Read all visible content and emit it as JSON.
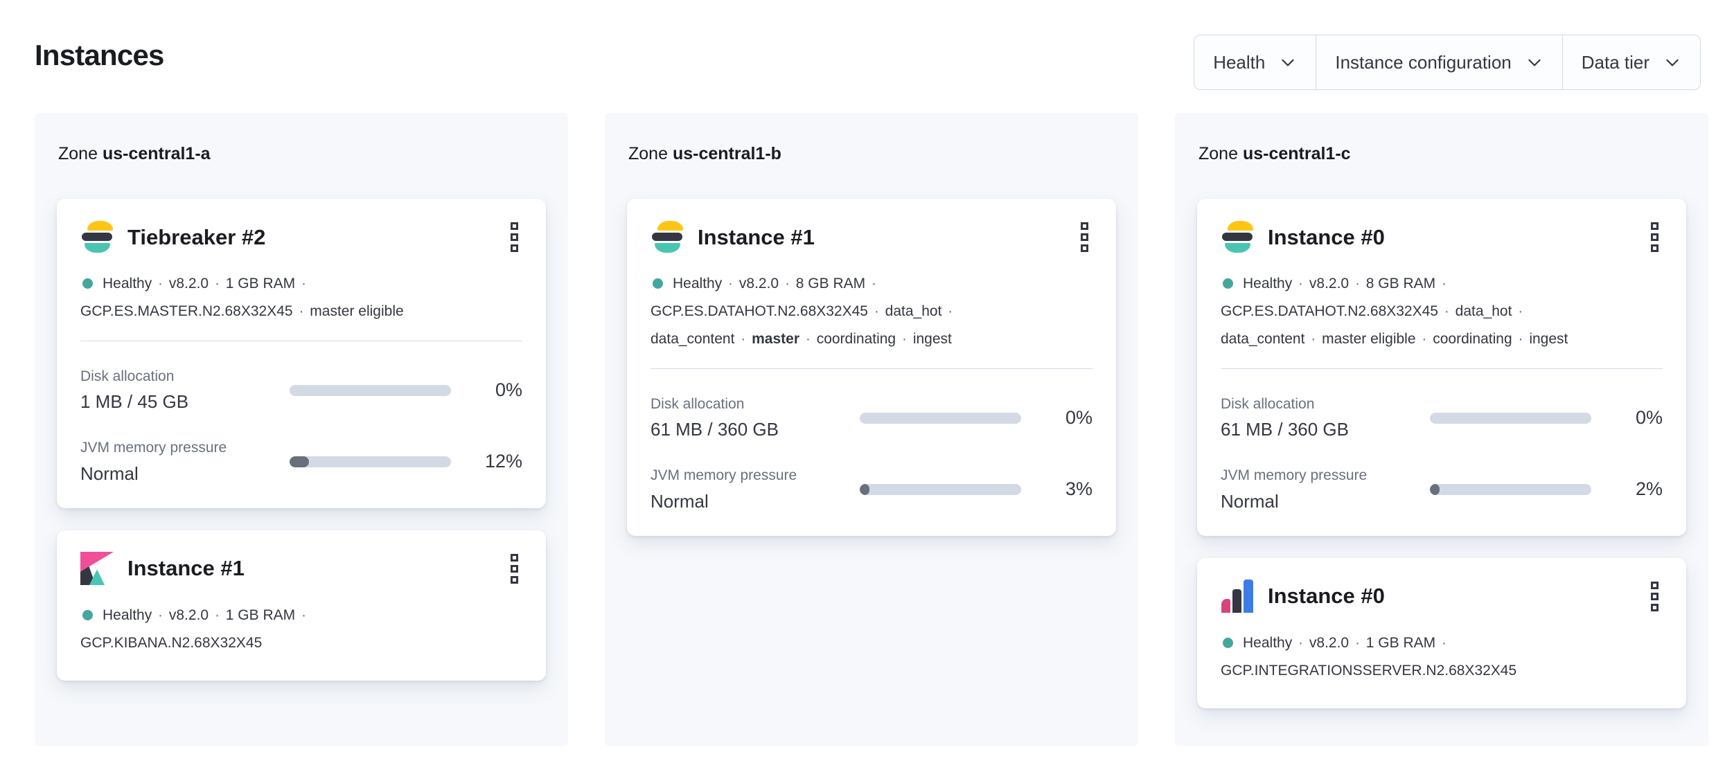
{
  "ui": {
    "separator": "·",
    "menu_icon": "boxes-vertical",
    "chevron_icon": "chevron-down",
    "health_icon": "health-dot"
  },
  "colors": {
    "healthy": "#45a79b",
    "text_dark": "#343741",
    "text_subdued": "#69707d",
    "heading": "#1a1c21",
    "panel_bg": "#f6f8fb",
    "border": "#d3dae6",
    "track": "#d3dae6",
    "fill": "#69707d",
    "filter_bg": "#fcfdfe",
    "es_yellow": "#fec514",
    "es_dark": "#343741",
    "es_teal": "#49c5b1",
    "kibana_pink": "#f04e98",
    "int_pink": "#d6437e",
    "int_blue": "#3a7de9"
  },
  "page": {
    "title": "Instances"
  },
  "filters": [
    {
      "label": "Health"
    },
    {
      "label": "Instance configuration"
    },
    {
      "label": "Data tier"
    }
  ],
  "zones": [
    {
      "prefix": "Zone",
      "name": "us-central1-a",
      "cards": [
        {
          "logo_icon": "elasticsearch-logo",
          "title": "Tiebreaker #2",
          "health": "Healthy",
          "meta_lines": [
            {
              "items": [
                "Healthy",
                "v8.2.0",
                "1 GB RAM"
              ],
              "trailing_separator": true
            },
            {
              "items": [
                "GCP.ES.MASTER.N2.68X32X45",
                "master eligible"
              ],
              "trailing_separator": false
            }
          ],
          "metrics": [
            {
              "label": "Disk allocation",
              "value": "1 MB / 45 GB",
              "percent": "0%",
              "fill": 0
            },
            {
              "label": "JVM memory pressure",
              "value": "Normal",
              "percent": "12%",
              "fill": 12
            }
          ]
        },
        {
          "logo_icon": "kibana-logo",
          "title": "Instance #1",
          "health": "Healthy",
          "meta_lines": [
            {
              "items": [
                "Healthy",
                "v8.2.0",
                "1 GB RAM"
              ],
              "trailing_separator": true
            },
            {
              "items": [
                "GCP.KIBANA.N2.68X32X45"
              ],
              "trailing_separator": false
            }
          ],
          "metrics": []
        }
      ]
    },
    {
      "prefix": "Zone",
      "name": "us-central1-b",
      "cards": [
        {
          "logo_icon": "elasticsearch-logo",
          "title": "Instance #1",
          "health": "Healthy",
          "meta_lines": [
            {
              "items": [
                "Healthy",
                "v8.2.0",
                "8 GB RAM"
              ],
              "trailing_separator": true
            },
            {
              "items": [
                "GCP.ES.DATAHOT.N2.68X32X45",
                "data_hot"
              ],
              "trailing_separator": true
            },
            {
              "items": [
                "data_content",
                "master",
                "coordinating",
                "ingest"
              ],
              "trailing_separator": false,
              "bold_item_index": 1
            }
          ],
          "metrics": [
            {
              "label": "Disk allocation",
              "value": "61 MB / 360 GB",
              "percent": "0%",
              "fill": 0
            },
            {
              "label": "JVM memory pressure",
              "value": "Normal",
              "percent": "3%",
              "fill": 3
            }
          ]
        }
      ]
    },
    {
      "prefix": "Zone",
      "name": "us-central1-c",
      "cards": [
        {
          "logo_icon": "elasticsearch-logo",
          "title": "Instance #0",
          "health": "Healthy",
          "meta_lines": [
            {
              "items": [
                "Healthy",
                "v8.2.0",
                "8 GB RAM"
              ],
              "trailing_separator": true
            },
            {
              "items": [
                "GCP.ES.DATAHOT.N2.68X32X45",
                "data_hot"
              ],
              "trailing_separator": true
            },
            {
              "items": [
                "data_content",
                "master eligible",
                "coordinating",
                "ingest"
              ],
              "trailing_separator": false
            }
          ],
          "metrics": [
            {
              "label": "Disk allocation",
              "value": "61 MB / 360 GB",
              "percent": "0%",
              "fill": 0
            },
            {
              "label": "JVM memory pressure",
              "value": "Normal",
              "percent": "2%",
              "fill": 2
            }
          ]
        },
        {
          "logo_icon": "integrations-server-logo",
          "title": "Instance #0",
          "health": "Healthy",
          "meta_lines": [
            {
              "items": [
                "Healthy",
                "v8.2.0",
                "1 GB RAM"
              ],
              "trailing_separator": true
            },
            {
              "items": [
                "GCP.INTEGRATIONSSERVER.N2.68X32X45"
              ],
              "trailing_separator": false
            }
          ],
          "metrics": []
        }
      ]
    }
  ]
}
